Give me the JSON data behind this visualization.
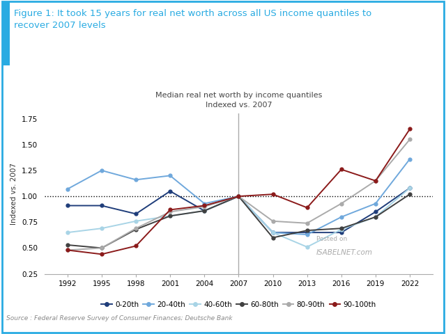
{
  "title_box": "Figure 1: It took 15 years for real net worth across all US income quantiles to\nrecover 2007 levels",
  "subtitle1": "Median real net worth by income quantiles",
  "subtitle2": "Indexed vs. 2007",
  "ylabel": "Indexed vs. 2007",
  "source": "Source : Federal Reserve Survey of Consumer Finances; Deutsche Bank",
  "x_years": [
    1992,
    1995,
    1998,
    2001,
    2004,
    2007,
    2010,
    2013,
    2016,
    2019,
    2022
  ],
  "series": {
    "0-20th": {
      "color": "#1f3d7a",
      "values": [
        0.91,
        0.91,
        0.83,
        1.05,
        0.86,
        1.0,
        0.65,
        0.65,
        0.65,
        0.85,
        1.08
      ]
    },
    "20-40th": {
      "color": "#6fa8dc",
      "values": [
        1.07,
        1.25,
        1.16,
        1.2,
        0.93,
        1.0,
        0.65,
        0.63,
        0.8,
        0.93,
        1.36
      ]
    },
    "40-60th": {
      "color": "#a8d4e6",
      "values": [
        0.65,
        0.69,
        0.76,
        0.81,
        0.86,
        1.0,
        0.65,
        0.51,
        0.68,
        0.8,
        1.08
      ]
    },
    "60-80th": {
      "color": "#404040",
      "values": [
        0.53,
        0.5,
        0.68,
        0.81,
        0.86,
        1.0,
        0.6,
        0.67,
        0.69,
        0.8,
        1.02
      ]
    },
    "80-90th": {
      "color": "#aaaaaa",
      "values": [
        0.48,
        0.5,
        0.69,
        0.85,
        0.9,
        1.0,
        0.76,
        0.74,
        0.93,
        1.15,
        1.55
      ]
    },
    "90-100th": {
      "color": "#8b1a1a",
      "values": [
        0.48,
        0.44,
        0.52,
        0.87,
        0.91,
        1.0,
        1.02,
        0.89,
        1.26,
        1.15,
        1.65
      ]
    }
  },
  "vline_x": 2007,
  "hline_y": 1.0,
  "ylim": [
    0.25,
    1.8
  ],
  "yticks": [
    0.25,
    0.5,
    0.75,
    1.0,
    1.25,
    1.5,
    1.75
  ],
  "header_bg": "#ddeef6",
  "header_border_color": "#29abe2",
  "title_color": "#29abe2",
  "watermark1": "Posted on",
  "watermark2": "ISABELNET.com",
  "border_color": "#29abe2"
}
